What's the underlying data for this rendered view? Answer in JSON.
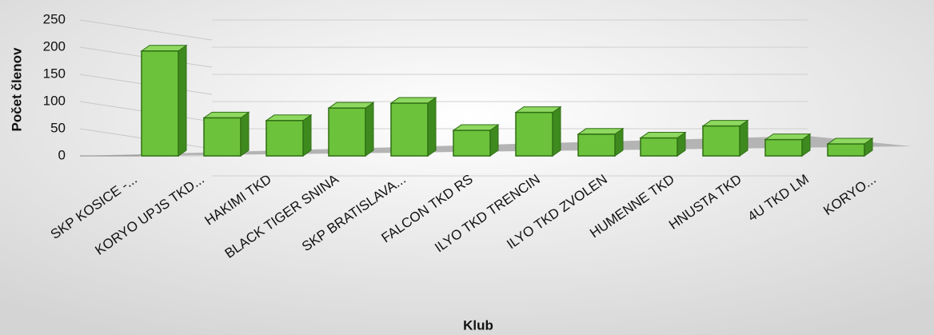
{
  "chart_data": {
    "type": "bar3d",
    "categories": [
      "SKP KOSICE  -...",
      "KORYO UPJS TKD...",
      "HAKIMI TKD",
      "BLACK TIGER SNINA",
      "SKP BRATISLAVA...",
      "FALCON TKD RS",
      "ILYO TKD TRENCIN",
      "ILYO TKD ZVOLEN",
      "HUMENNE TKD",
      "HNUSTA TKD",
      "4U TKD LM",
      "KORYO..."
    ],
    "values": [
      193,
      70,
      65,
      88,
      97,
      47,
      80,
      40,
      33,
      55,
      30,
      22
    ],
    "color": "#6cc23a",
    "ylim": [
      0,
      250
    ],
    "yticks": [
      0,
      50,
      100,
      150,
      200,
      250
    ],
    "grid": true,
    "y_label": "Počet členov",
    "x_label": "Klub"
  }
}
